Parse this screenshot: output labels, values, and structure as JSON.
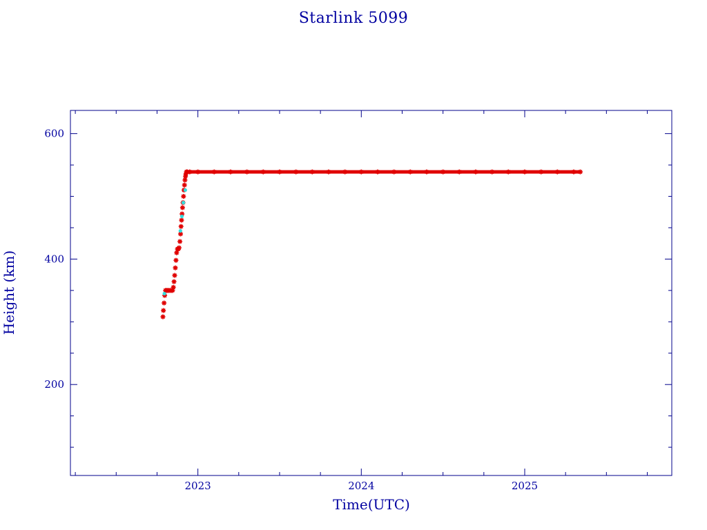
{
  "chart_data": {
    "type": "scatter",
    "title": "Starlink 5099",
    "xlabel": "Time(UTC)",
    "ylabel": "Height (km)",
    "xlim": [
      2022.22,
      2025.9
    ],
    "ylim": [
      55,
      637
    ],
    "x_major_ticks": [
      2023,
      2024,
      2025
    ],
    "x_minor_ticks": [
      2022.25,
      2022.5,
      2022.75,
      2023.25,
      2023.5,
      2023.75,
      2024.25,
      2024.5,
      2024.75,
      2025.25,
      2025.5,
      2025.75
    ],
    "y_major_ticks": [
      200,
      400,
      600
    ],
    "y_minor_ticks": [
      100,
      150,
      250,
      300,
      350,
      450,
      500,
      550
    ],
    "grid": false,
    "colors": {
      "axes": "#00008b",
      "text": "#0000a0",
      "primary_marker": "#e00000",
      "secondary_marker": "#33dddd"
    },
    "series": [
      {
        "marker": "star",
        "color": "#e00000",
        "x": [
          2022.786,
          2022.789,
          2022.793,
          2022.797,
          2022.802,
          2022.808,
          2022.815,
          2022.822,
          2022.83,
          2022.838,
          2022.845,
          2022.85,
          2022.854,
          2022.858,
          2022.862,
          2022.866,
          2022.87,
          2022.875,
          2022.88,
          2022.885,
          2022.89,
          2022.894,
          2022.897,
          2022.9,
          2022.903,
          2022.906,
          2022.909,
          2022.912,
          2022.915,
          2022.918,
          2022.921,
          2022.924,
          2022.927,
          2022.93,
          2022.935,
          2022.95,
          2023.0,
          2023.1,
          2023.2,
          2023.3,
          2023.4,
          2023.5,
          2023.6,
          2023.7,
          2023.8,
          2023.9,
          2024.0,
          2024.1,
          2024.2,
          2024.3,
          2024.4,
          2024.5,
          2024.6,
          2024.7,
          2024.8,
          2024.9,
          2025.0,
          2025.1,
          2025.2,
          2025.3,
          2025.34
        ],
        "y": [
          308,
          318,
          330,
          342,
          350,
          350,
          350,
          350,
          350,
          350,
          350,
          355,
          364,
          374,
          386,
          398,
          410,
          416,
          416,
          418,
          428,
          440,
          452,
          462,
          472,
          482,
          490,
          500,
          510,
          518,
          526,
          532,
          536,
          539,
          539,
          539,
          539,
          539,
          539,
          539,
          539,
          539,
          539,
          539,
          539,
          539,
          539,
          539,
          539,
          539,
          539,
          539,
          539,
          539,
          539,
          539,
          539,
          539,
          539,
          539,
          539
        ]
      },
      {
        "marker": "dot",
        "color": "#33dddd",
        "x": [
          2022.795,
          2022.893,
          2022.902,
          2022.911,
          2022.923
        ],
        "y": [
          345,
          445,
          468,
          490,
          510
        ]
      }
    ]
  }
}
